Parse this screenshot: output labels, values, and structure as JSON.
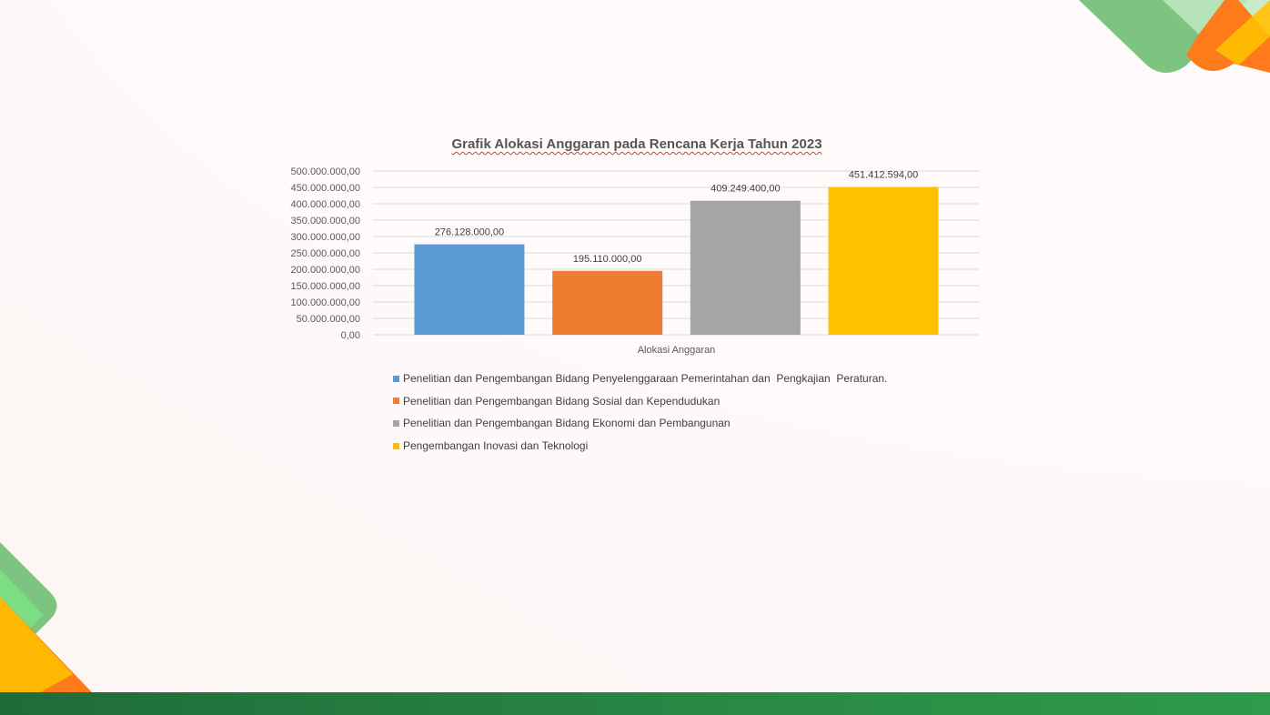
{
  "colors": {
    "background": "#fdf9f8",
    "green": "#7cc47f",
    "light_green": "#7ddd84",
    "orange": "#ff7a1a",
    "yellow": "#ffc000",
    "footer": "#2a8a45"
  },
  "chart_data": {
    "type": "bar",
    "title": "Grafik Alokasi Anggaran pada Rencana Kerja Tahun 2023",
    "xlabel": "Alokasi Anggaran",
    "ylabel": "",
    "ylim": [
      0,
      500000000
    ],
    "yticks": [
      "0,00",
      "50.000.000,00",
      "100.000.000,00",
      "150.000.000,00",
      "200.000.000,00",
      "250.000.000,00",
      "300.000.000,00",
      "350.000.000,00",
      "400.000.000,00",
      "450.000.000,00",
      "500.000.000,00"
    ],
    "grid": true,
    "legend_position": "bottom",
    "series": [
      {
        "name": "Penelitian dan Pengembangan Bidang Penyelenggaraan Pemerintahan dan  Pengkajian  Peraturan.",
        "value": 276128000,
        "label": "276.128.000,00",
        "color": "#5b9bd5"
      },
      {
        "name": "Penelitian dan Pengembangan Bidang Sosial dan Kependudukan",
        "value": 195110000,
        "label": "195.110.000,00",
        "color": "#ed7d31"
      },
      {
        "name": "Penelitian dan Pengembangan Bidang Ekonomi dan Pembangunan",
        "value": 409249400,
        "label": "409.249.400,00",
        "color": "#a5a5a5"
      },
      {
        "name": "Pengembangan Inovasi dan Teknologi",
        "value": 451412594,
        "label": "451.412.594,00",
        "color": "#ffc000"
      }
    ]
  }
}
